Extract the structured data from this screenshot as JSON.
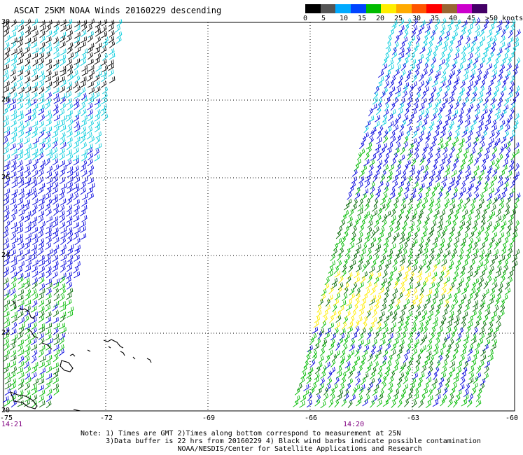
{
  "title": "ASCAT 25KM NOAA Winds 20160229 descending",
  "colorbar": {
    "labels": [
      "0",
      "5",
      "10",
      "15",
      "20",
      "25",
      "30",
      "35",
      "40",
      "45",
      ">50 knots"
    ],
    "colors": [
      "#000000",
      "#555555",
      "#00aaff",
      "#0044ff",
      "#00bb00",
      "#ffee00",
      "#ffaa00",
      "#ff5500",
      "#ff0000",
      "#996633",
      "#cc00cc",
      "#440066"
    ]
  },
  "axes": {
    "lat_labels": [
      "30",
      "28",
      "26",
      "24",
      "22",
      "20"
    ],
    "lon_labels": [
      "-75",
      "-72",
      "-69",
      "-66",
      "-63",
      "-60"
    ],
    "lat_values": [
      30,
      28,
      26,
      24,
      22,
      20
    ],
    "lon_values": [
      -75,
      -72,
      -69,
      -66,
      -63,
      -60
    ],
    "lat_range": [
      20,
      30
    ],
    "lon_range": [
      -75,
      -60
    ]
  },
  "swath_times": [
    {
      "label": "14:21",
      "lon": -75
    },
    {
      "label": "14:20",
      "lon": -64.9
    }
  ],
  "notes": {
    "line1": "Note: 1) Times are GMT 2)Times along bottom correspond to measurement at 25N",
    "line2": "      3)Data buffer is 22 hrs from 20160229 4) Black wind barbs indicate possible contamination",
    "line3": "                       NOAA/NESDIS/Center for Satellite Applications and Research"
  },
  "colors": {
    "cyan": "#00ccdd",
    "blue": "#0000dd",
    "green": "#00bb00",
    "dark_green": "#006600",
    "yellow": "#ffee00",
    "black": "#000000"
  }
}
